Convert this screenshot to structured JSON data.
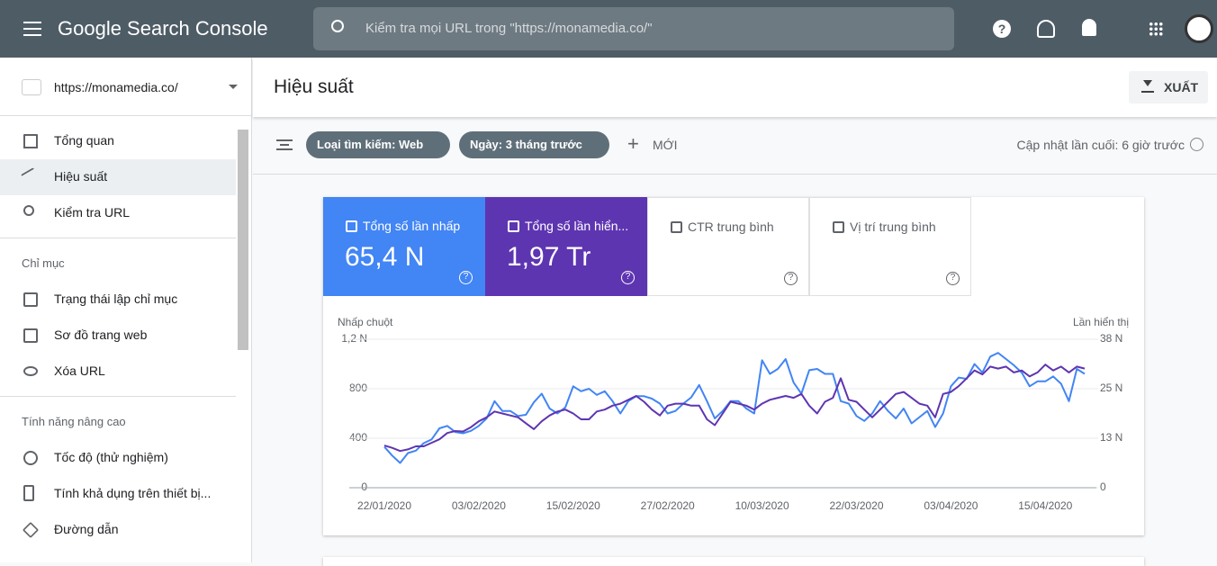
{
  "header": {
    "product": "Google Search Console",
    "search_placeholder": "Kiểm tra mọi URL trong \"https://monamedia.co/\""
  },
  "sidebar": {
    "property": "https://monamedia.co/",
    "items": [
      "Tổng quan",
      "Hiệu suất",
      "Kiểm tra URL"
    ],
    "sections": [
      {
        "title": "Chỉ mục",
        "items": [
          "Trạng thái lập chỉ mục",
          "Sơ đồ trang web",
          "Xóa URL"
        ]
      },
      {
        "title": "Tính năng nâng cao",
        "items": [
          "Tốc độ (thử nghiệm)",
          "Tính khả dụng trên thiết bị...",
          "Đường dẫn"
        ]
      }
    ]
  },
  "main": {
    "title": "Hiệu suất",
    "export": "XUẤT",
    "filters": [
      "Loại tìm kiếm: Web",
      "Ngày: 3 tháng trước"
    ],
    "new": "MỚI",
    "updated": "Cập nhật lần cuối: 6 giờ trước"
  },
  "metrics": [
    {
      "label": "Tổng số lần nhấp",
      "value": "65,4 N"
    },
    {
      "label": "Tổng số lần hiển...",
      "value": "1,97 Tr"
    },
    {
      "label": "CTR trung bình"
    },
    {
      "label": "Vị trí trung bình"
    }
  ],
  "chart_data": {
    "type": "line",
    "y_label": "Nhấp chuột",
    "y2_label": "Lần hiển thị",
    "categories": [
      "22/01/2020",
      null,
      null,
      null,
      null,
      null,
      null,
      null,
      null,
      null,
      null,
      null,
      "03/02/2020",
      null,
      null,
      null,
      null,
      null,
      null,
      null,
      null,
      null,
      null,
      null,
      "15/02/2020",
      null,
      null,
      null,
      null,
      null,
      null,
      null,
      null,
      null,
      null,
      null,
      "27/02/2020",
      null,
      null,
      null,
      null,
      null,
      null,
      null,
      null,
      null,
      null,
      null,
      "10/03/2020",
      null,
      null,
      null,
      null,
      null,
      null,
      null,
      null,
      null,
      null,
      null,
      "22/03/2020",
      null,
      null,
      null,
      null,
      null,
      null,
      null,
      null,
      null,
      null,
      null,
      "03/04/2020",
      null,
      null,
      null,
      null,
      null,
      null,
      null,
      null,
      null,
      null,
      null,
      "15/04/2020",
      null,
      null,
      null,
      null,
      null
    ],
    "series": [
      {
        "name": "Tổng số lần nhấp",
        "color": "#4285f4",
        "values": [
          330,
          260,
          200,
          280,
          300,
          360,
          390,
          480,
          500,
          450,
          440,
          460,
          500,
          560,
          700,
          620,
          620,
          580,
          590,
          690,
          760,
          640,
          600,
          650,
          820,
          780,
          800,
          750,
          780,
          700,
          600,
          700,
          740,
          740,
          720,
          680,
          600,
          620,
          680,
          730,
          830,
          700,
          560,
          620,
          700,
          700,
          640,
          600,
          1030,
          920,
          960,
          1040,
          850,
          760,
          950,
          960,
          920,
          920,
          700,
          680,
          580,
          540,
          600,
          700,
          620,
          560,
          640,
          520,
          570,
          620,
          490,
          600,
          820,
          890,
          880,
          1000,
          930,
          1060,
          1090,
          1040,
          990,
          930,
          820,
          860,
          860,
          900,
          840,
          700,
          960,
          920
        ]
      },
      {
        "name": "Tổng số lần hiển...",
        "color": "#5e35b1",
        "axis": "y2",
        "values": [
          10800,
          10200,
          9400,
          9800,
          10600,
          10600,
          11500,
          12400,
          14000,
          14500,
          14400,
          15500,
          17000,
          18000,
          19500,
          19000,
          18500,
          18000,
          16500,
          15000,
          17000,
          18500,
          19500,
          20000,
          19000,
          17500,
          17500,
          19500,
          20000,
          21000,
          21500,
          22500,
          23500,
          22000,
          20000,
          18500,
          21000,
          21500,
          21500,
          21000,
          21000,
          17500,
          16000,
          19000,
          22000,
          21500,
          21000,
          20000,
          21500,
          22500,
          23000,
          23500,
          23000,
          24000,
          21000,
          19000,
          22000,
          23000,
          28000,
          22500,
          22000,
          20000,
          18000,
          20000,
          22000,
          24000,
          24500,
          23000,
          21500,
          21000,
          18000,
          24000,
          24500,
          26000,
          28000,
          30000,
          29000,
          31000,
          30500,
          31000,
          29500,
          30000,
          28500,
          29500,
          31500,
          30000,
          31000,
          29500,
          31000,
          30500
        ]
      }
    ],
    "ylim": [
      0,
      1200
    ],
    "yticks": [
      0,
      400,
      800,
      {
        "value": 1200,
        "label": "1,2 N"
      }
    ],
    "y2lim": [
      0,
      38000
    ],
    "y2ticks": [
      0,
      {
        "value": 12667,
        "label": "13 N"
      },
      {
        "value": 25333,
        "label": "25 N"
      },
      {
        "value": 38000,
        "label": "38 N"
      }
    ],
    "grid": true
  }
}
